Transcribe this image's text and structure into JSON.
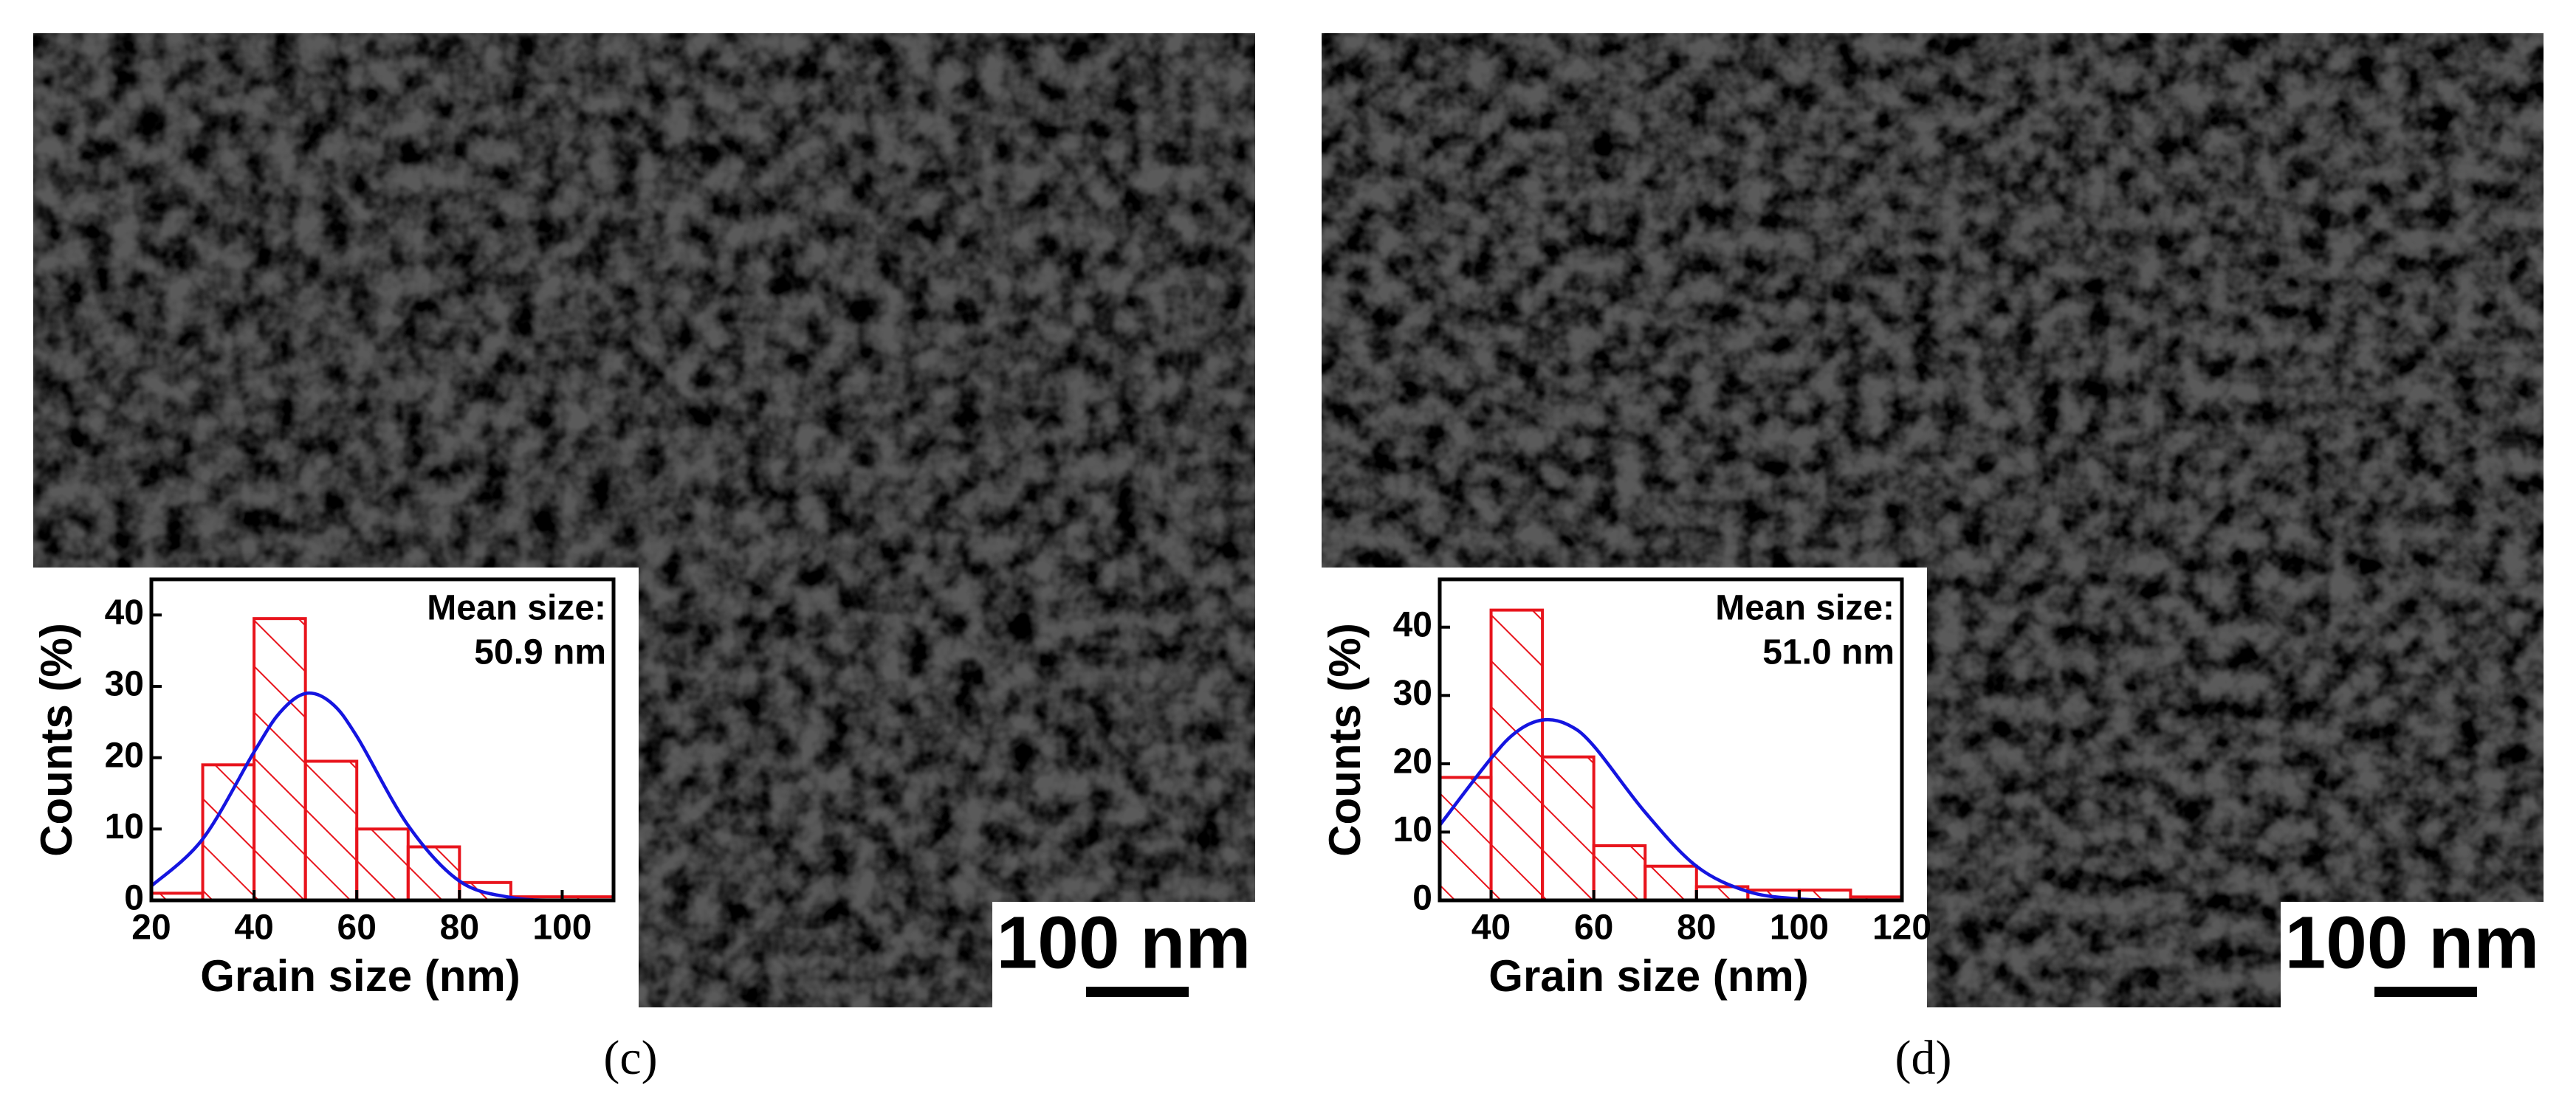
{
  "chart_data": [
    {
      "type": "histogram",
      "panel": "(c)",
      "xlabel": "Grain size (nm)",
      "ylabel": "Counts (%)",
      "annotation": [
        "Mean size:",
        "50.9 nm"
      ],
      "scale_bar": "100 nm",
      "bins": [
        20,
        30,
        40,
        50,
        60,
        70,
        80,
        90,
        100,
        110
      ],
      "values": [
        1,
        19,
        39.5,
        19.5,
        10,
        7.5,
        2.5,
        0.5,
        0.5
      ],
      "color": "#e8141c",
      "fit": {
        "color": "#1515e0",
        "x": [
          20,
          30,
          40,
          45,
          50,
          55,
          60,
          70,
          80,
          90,
          100,
          110
        ],
        "y": [
          2.0,
          8.6,
          20.8,
          26.3,
          29.0,
          27.7,
          23.0,
          10.5,
          2.7,
          0.4,
          0.0,
          0.0
        ]
      },
      "xlim": [
        20,
        110
      ],
      "xticks": [
        20,
        40,
        60,
        80,
        100
      ],
      "ylim": [
        0,
        45
      ],
      "yticks": [
        0,
        10,
        20,
        30,
        40
      ]
    },
    {
      "type": "histogram",
      "panel": "(d)",
      "xlabel": "Grain size (nm)",
      "ylabel": "Counts (%)",
      "annotation": [
        "Mean size:",
        "51.0 nm"
      ],
      "scale_bar": "100 nm",
      "bins": [
        30,
        40,
        50,
        60,
        70,
        80,
        90,
        100,
        110,
        120
      ],
      "values": [
        18,
        42.5,
        21,
        8,
        5,
        2,
        1.5,
        1.5,
        0.5
      ],
      "color": "#e8141c",
      "fit": {
        "color": "#1515e0",
        "x": [
          30,
          40,
          45,
          50,
          55,
          60,
          70,
          80,
          90,
          100,
          110,
          120
        ],
        "y": [
          11.0,
          20.8,
          24.7,
          26.4,
          25.7,
          22.6,
          12.9,
          5.0,
          1.3,
          0.2,
          0.0,
          0.0
        ]
      },
      "xlim": [
        30,
        120
      ],
      "xticks": [
        40,
        60,
        80,
        100,
        120
      ],
      "ylim": [
        0,
        47
      ],
      "yticks": [
        0,
        10,
        20,
        30,
        40
      ]
    }
  ]
}
